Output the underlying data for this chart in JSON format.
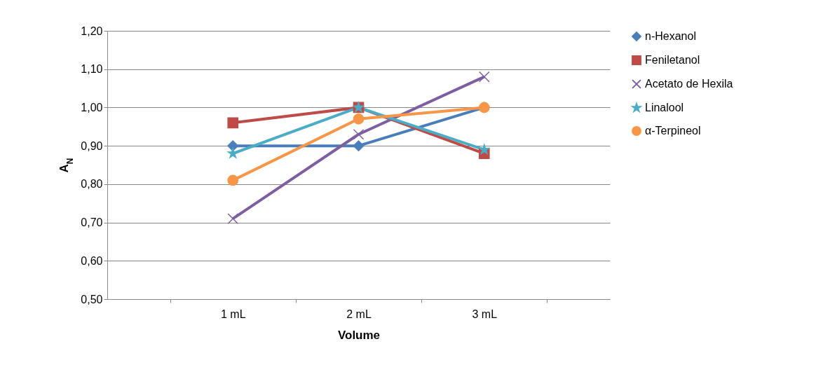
{
  "chart_data": {
    "type": "line",
    "xlabel": "Volume",
    "ylabel": "A$_{N}$",
    "categories": [
      "1 mL",
      "2 mL",
      "3 mL"
    ],
    "ylim": [
      0.5,
      1.2
    ],
    "yticks": [
      {
        "value": 0.5,
        "label": "0,50"
      },
      {
        "value": 0.6,
        "label": "0,60"
      },
      {
        "value": 0.7,
        "label": "0,70"
      },
      {
        "value": 0.8,
        "label": "0,80"
      },
      {
        "value": 0.9,
        "label": "0,90"
      },
      {
        "value": 1.0,
        "label": "1,00"
      },
      {
        "value": 1.1,
        "label": "1,10"
      },
      {
        "value": 1.2,
        "label": "1,20"
      }
    ],
    "grid": "y",
    "legend": "right",
    "series": [
      {
        "name": "n-Hexanol",
        "color": "#4a7ebb",
        "marker": "diamond",
        "values": [
          0.9,
          0.9,
          1.0
        ]
      },
      {
        "name": "Feniletanol",
        "color": "#be4b48",
        "marker": "square",
        "values": [
          0.96,
          1.0,
          0.88
        ]
      },
      {
        "name": "Acetato de Hexila",
        "color": "#7d5fa0",
        "marker": "cross",
        "values": [
          0.71,
          0.93,
          1.08
        ]
      },
      {
        "name": "Linalool",
        "color": "#4bacc6",
        "marker": "star",
        "values": [
          0.88,
          1.0,
          0.89
        ]
      },
      {
        "name": "α-Terpineol",
        "color": "#f79646",
        "marker": "circle",
        "values": [
          0.81,
          0.97,
          1.0
        ]
      }
    ]
  }
}
